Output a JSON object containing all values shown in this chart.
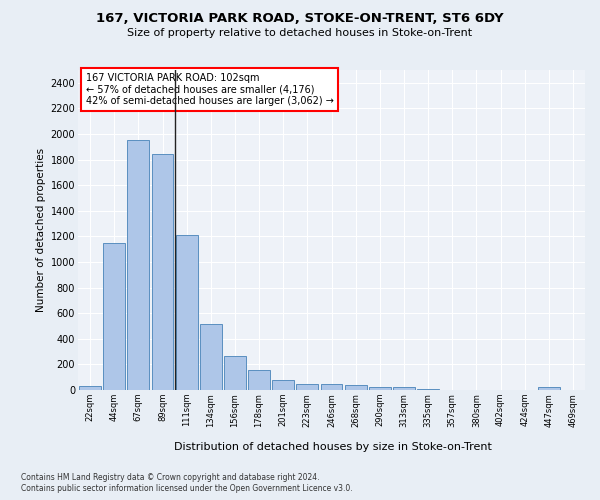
{
  "title1": "167, VICTORIA PARK ROAD, STOKE-ON-TRENT, ST6 6DY",
  "title2": "Size of property relative to detached houses in Stoke-on-Trent",
  "xlabel": "Distribution of detached houses by size in Stoke-on-Trent",
  "ylabel": "Number of detached properties",
  "categories": [
    "22sqm",
    "44sqm",
    "67sqm",
    "89sqm",
    "111sqm",
    "134sqm",
    "156sqm",
    "178sqm",
    "201sqm",
    "223sqm",
    "246sqm",
    "268sqm",
    "290sqm",
    "313sqm",
    "335sqm",
    "357sqm",
    "380sqm",
    "402sqm",
    "424sqm",
    "447sqm",
    "469sqm"
  ],
  "values": [
    30,
    1150,
    1950,
    1840,
    1210,
    515,
    265,
    155,
    80,
    50,
    45,
    40,
    22,
    20,
    10,
    0,
    0,
    0,
    0,
    20,
    0
  ],
  "bar_color": "#aec6e8",
  "bar_edge_color": "#5a8fc0",
  "annotation_box_text": "167 VICTORIA PARK ROAD: 102sqm\n← 57% of detached houses are smaller (4,176)\n42% of semi-detached houses are larger (3,062) →",
  "ylim": [
    0,
    2500
  ],
  "yticks": [
    0,
    200,
    400,
    600,
    800,
    1000,
    1200,
    1400,
    1600,
    1800,
    2000,
    2200,
    2400
  ],
  "bg_color": "#e8eef5",
  "plot_bg_color": "#eef2f8",
  "grid_color": "#ffffff",
  "footer_line1": "Contains HM Land Registry data © Crown copyright and database right 2024.",
  "footer_line2": "Contains public sector information licensed under the Open Government Licence v3.0."
}
